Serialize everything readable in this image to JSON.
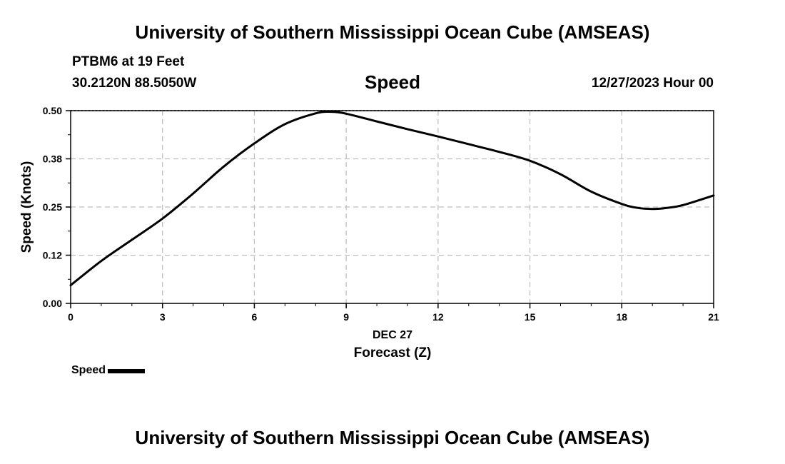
{
  "header": {
    "title": "University of Southern Mississippi Ocean Cube (AMSEAS)",
    "station": "PTBM6 at 19 Feet",
    "coords": "30.2120N  88.5050W",
    "variable": "Speed",
    "datetime": "12/27/2023 Hour 00"
  },
  "footer": {
    "title": "University of Southern Mississippi Ocean Cube (AMSEAS)"
  },
  "legend": {
    "label": "Speed",
    "color": "#000000"
  },
  "chart_data": {
    "type": "line",
    "title": "Speed",
    "xlabel": "Forecast (Z)",
    "xlabel_date": "DEC 27",
    "ylabel": "Speed (Knots)",
    "xlim": [
      0,
      21
    ],
    "ylim": [
      0,
      0.5
    ],
    "x_ticks": [
      0,
      3,
      6,
      9,
      12,
      15,
      18,
      21
    ],
    "x_tick_labels": [
      "0",
      "3",
      "6",
      "9",
      "12",
      "15",
      "18",
      "21"
    ],
    "y_ticks": [
      0,
      0.125,
      0.25,
      0.375,
      0.5
    ],
    "y_tick_labels": [
      "0.00",
      "0.12",
      "0.25",
      "0.38",
      "0.50"
    ],
    "grid": true,
    "legend_position": "bottom-left",
    "series": [
      {
        "name": "Speed",
        "color": "#000000",
        "x": [
          0,
          1,
          2,
          3,
          4,
          5,
          6,
          7,
          8,
          8.5,
          9,
          10,
          11,
          12,
          13,
          14,
          15,
          16,
          17,
          18,
          18.5,
          19,
          19.5,
          20,
          21
        ],
        "y": [
          0.047,
          0.11,
          0.165,
          0.22,
          0.285,
          0.355,
          0.415,
          0.465,
          0.493,
          0.497,
          0.492,
          0.472,
          0.452,
          0.433,
          0.413,
          0.393,
          0.37,
          0.335,
          0.29,
          0.258,
          0.248,
          0.245,
          0.248,
          0.255,
          0.28
        ]
      }
    ]
  }
}
